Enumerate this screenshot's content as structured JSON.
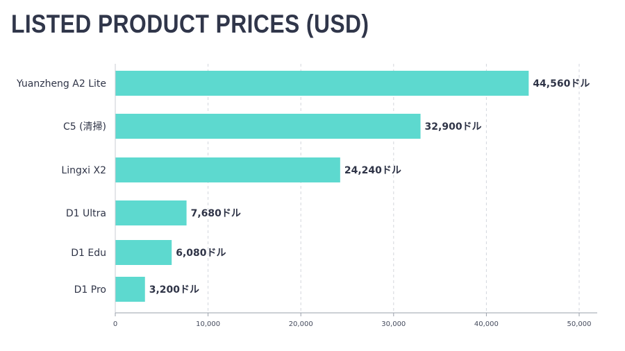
{
  "chart_data": {
    "type": "bar",
    "orientation": "horizontal",
    "title": "LISTED PRODUCT PRICES (USD)",
    "categories": [
      "Yuanzheng A2 Lite",
      "C5 (清掃)",
      "Lingxi X2",
      "D1 Ultra",
      "D1 Edu",
      "D1 Pro"
    ],
    "values": [
      44560,
      32900,
      24240,
      7680,
      6080,
      3200
    ],
    "value_labels": [
      "44,560ドル",
      "32,900ドル",
      "24,240ドル",
      "7,680ドル",
      "6,080ドル",
      "3,200ドル"
    ],
    "xticks": [
      0,
      10000,
      20000,
      30000,
      40000,
      50000
    ],
    "xtick_labels": [
      "0",
      "10,000",
      "20,000",
      "30,000",
      "40,000",
      "50,000"
    ],
    "xlim": [
      0,
      52000
    ],
    "grid": "vertical dashed",
    "bar_color": "#5dd9cf"
  }
}
